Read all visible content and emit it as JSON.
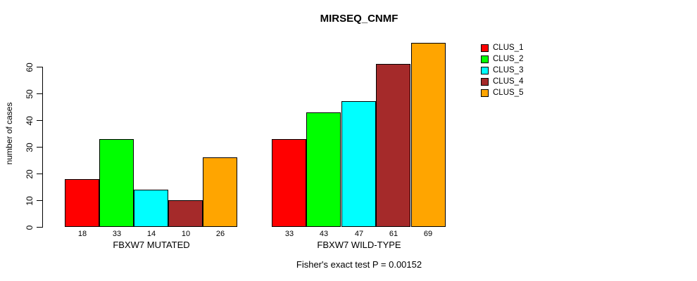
{
  "chart_data": {
    "type": "bar",
    "title": "MIRSEQ_CNMF",
    "ylabel": "number of cases",
    "xlabel": "",
    "ylim": [
      0,
      69
    ],
    "yticks": [
      0,
      10,
      20,
      30,
      40,
      50,
      60
    ],
    "grid": false,
    "legend_position": "right",
    "categories": [
      "CLUS_1",
      "CLUS_2",
      "CLUS_3",
      "CLUS_4",
      "CLUS_5"
    ],
    "colors": [
      "#FF0000",
      "#00FF00",
      "#00FFFF",
      "#A52A2A",
      "#FFA500"
    ],
    "groups": [
      {
        "label": "FBXW7 MUTATED",
        "values": [
          18,
          33,
          14,
          10,
          26
        ]
      },
      {
        "label": "FBXW7 WILD-TYPE",
        "values": [
          33,
          43,
          47,
          61,
          69
        ]
      }
    ],
    "annotation": "Fisher's exact test P = 0.00152"
  },
  "legend": {
    "items": [
      {
        "label": "CLUS_1",
        "color": "#FF0000"
      },
      {
        "label": "CLUS_2",
        "color": "#00FF00"
      },
      {
        "label": "CLUS_3",
        "color": "#00FFFF"
      },
      {
        "label": "CLUS_4",
        "color": "#A52A2A"
      },
      {
        "label": "CLUS_5",
        "color": "#FFA500"
      }
    ]
  }
}
